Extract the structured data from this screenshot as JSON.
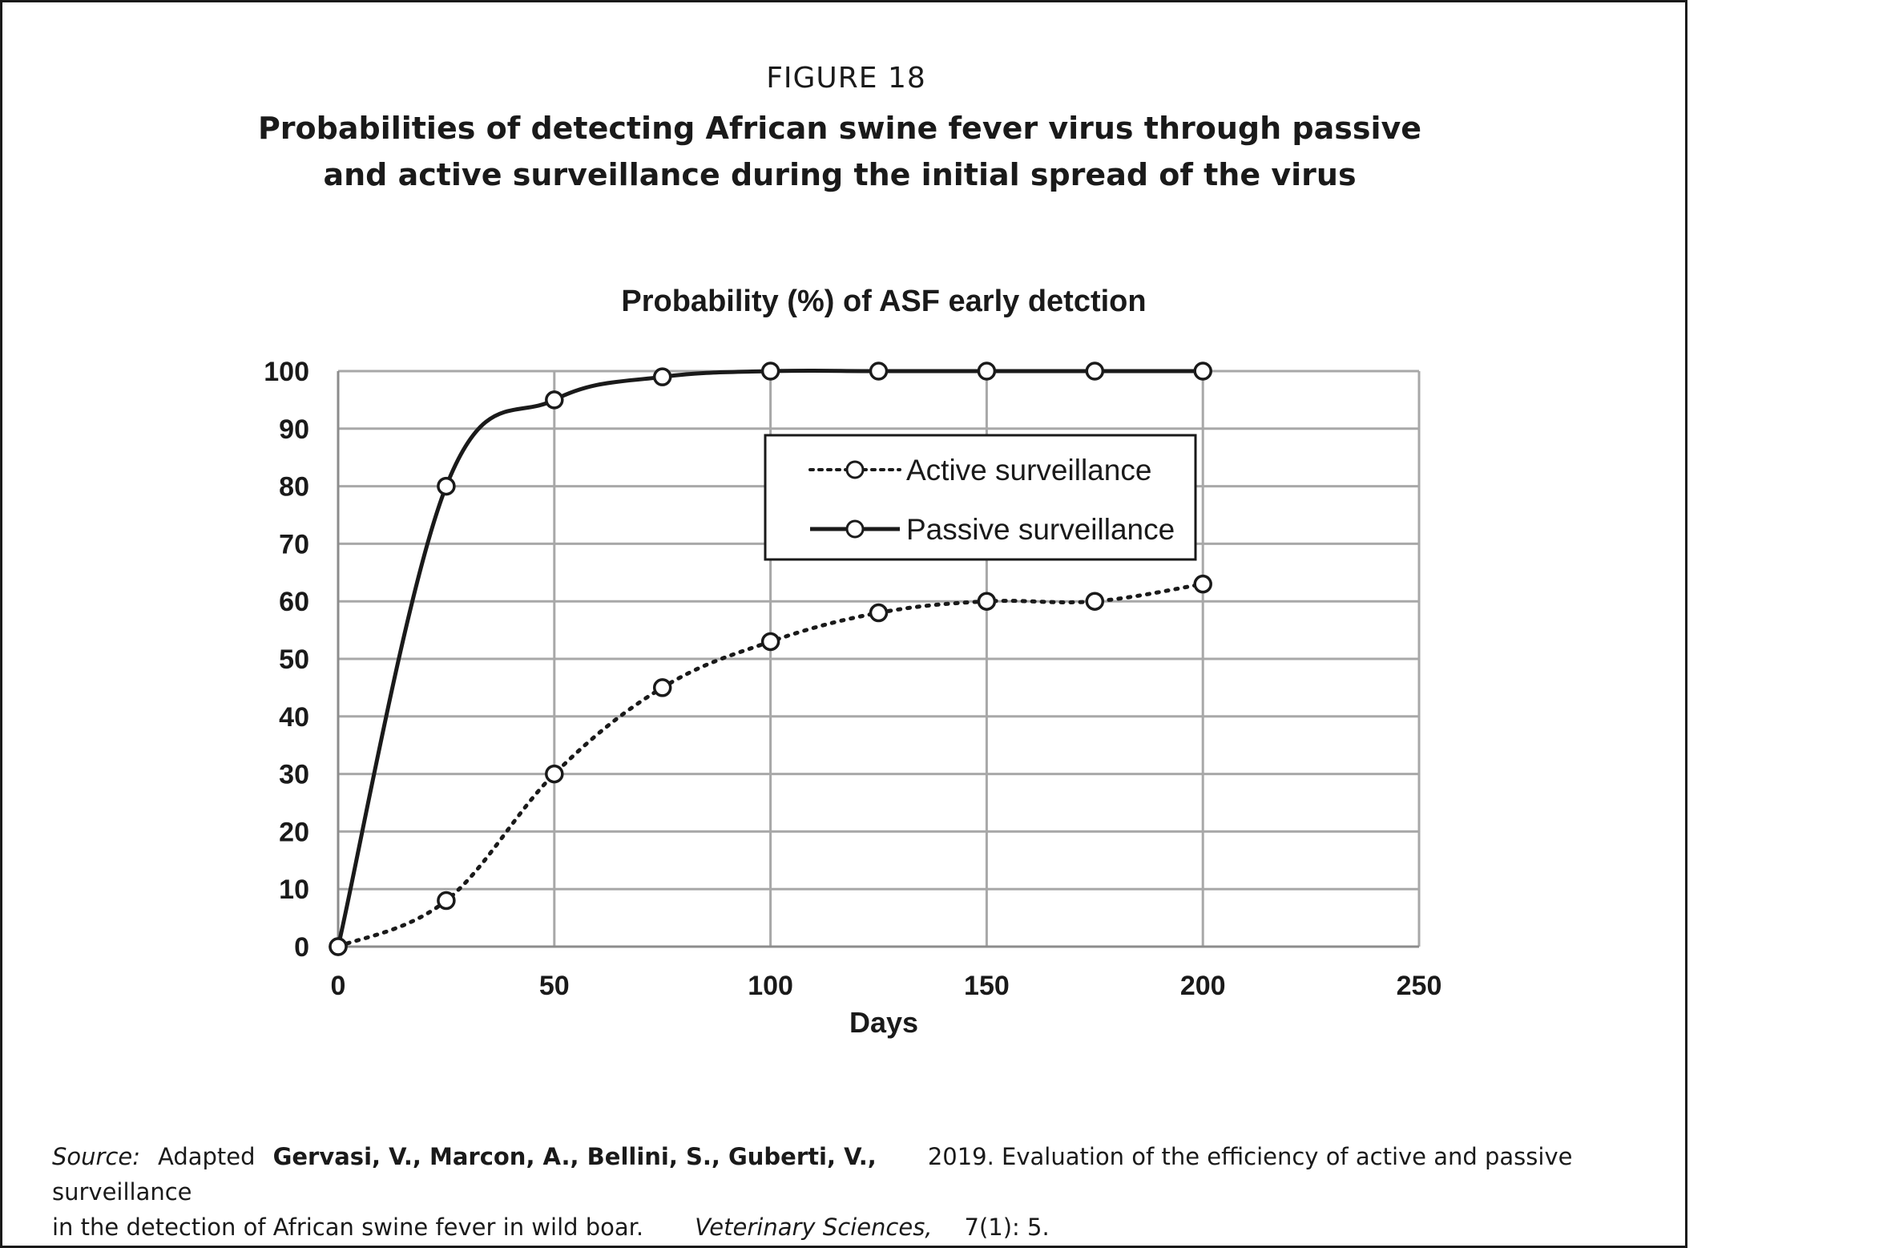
{
  "figure_label": "FIGURE 18",
  "figure_title": {
    "line1": "Probabilities of detecting African swine fever virus through passive",
    "line2": "and active surveillance during the initial spread of the virus"
  },
  "chart_data": {
    "type": "line",
    "title": "Probability (%) of ASF early detction",
    "xlabel": "Days",
    "ylabel": "",
    "xlim": [
      0,
      250
    ],
    "ylim": [
      0,
      100
    ],
    "x_ticks": [
      0,
      50,
      100,
      150,
      200,
      250
    ],
    "y_ticks": [
      0,
      10,
      20,
      30,
      40,
      50,
      60,
      70,
      80,
      90,
      100
    ],
    "grid": true,
    "legend_position": "top-right",
    "x": [
      0,
      25,
      50,
      75,
      100,
      125,
      150,
      175,
      200
    ],
    "series": [
      {
        "name": "Active surveillance",
        "style": "dotted",
        "color": "#1a1a1a",
        "values": [
          0,
          8,
          30,
          45,
          53,
          58,
          60,
          60,
          63
        ]
      },
      {
        "name": "Passive surveillance",
        "style": "solid",
        "color": "#1a1a1a",
        "values": [
          0,
          80,
          95,
          99,
          100,
          100,
          100,
          100,
          100
        ]
      }
    ]
  },
  "source": {
    "label": "Source:",
    "adapted": "Adapted",
    "authors": "Gervasi, V., Marcon, A., Bellini, S., Guberti, V.,",
    "text1": "2019. Evaluation of the efficiency of active and passive surveillance",
    "text2": "in the detection of African swine fever in wild boar.",
    "journal": "Veterinary Sciences,",
    "issue": "7(1): 5."
  }
}
